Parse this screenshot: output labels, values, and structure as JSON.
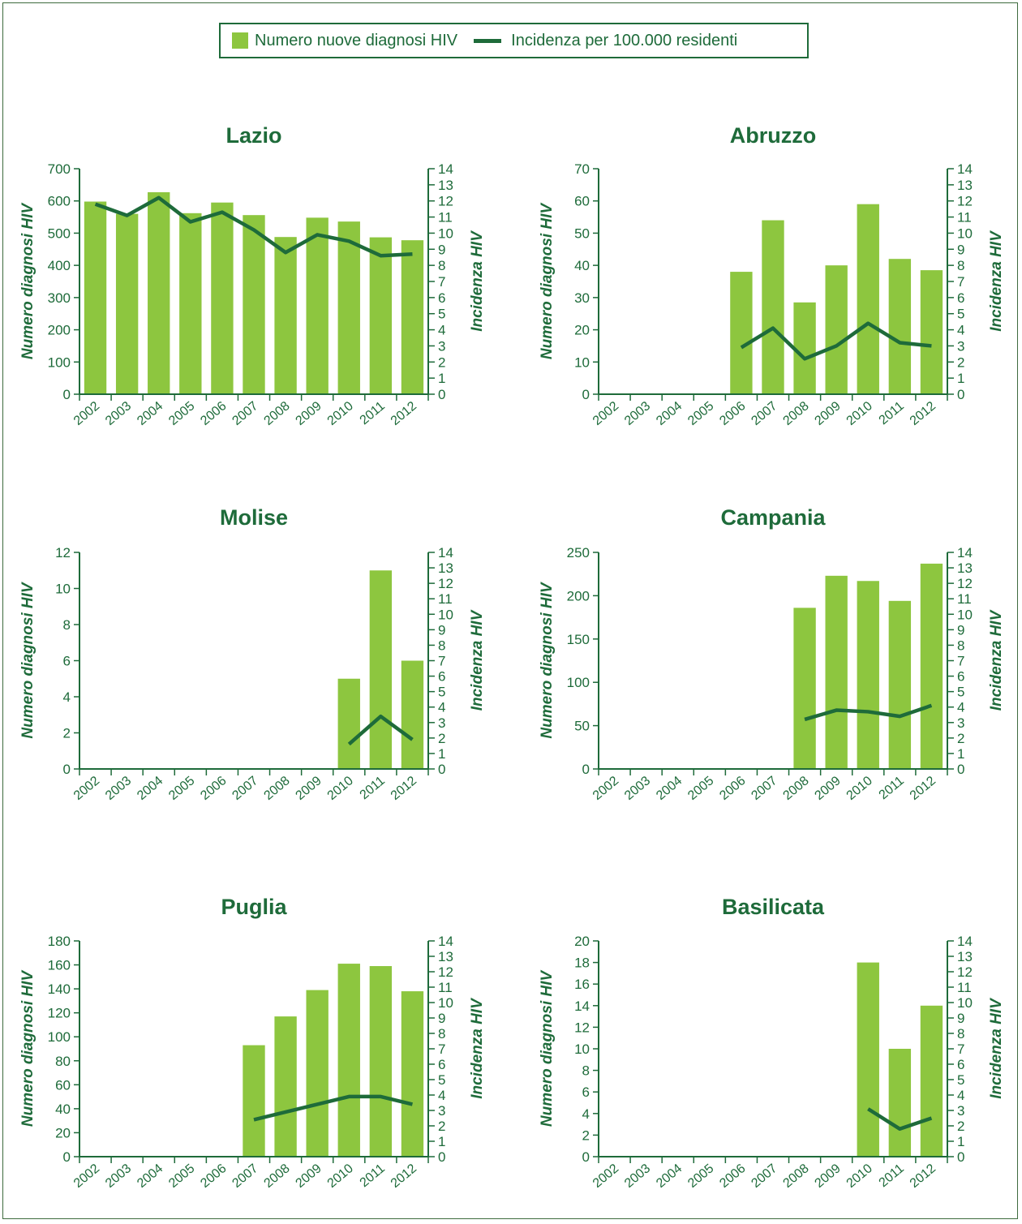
{
  "legend": {
    "bar_label": "Numero nuove diagnosi HIV",
    "line_label": "Incidenza per 100.000 residenti"
  },
  "colors": {
    "bar": "#8dc63f",
    "line": "#1e6b3a",
    "axis": "#1e6b3a",
    "text": "#1e6b3a",
    "title": "#1e6b3a"
  },
  "chart_data": [
    {
      "type": "bar",
      "title": "Lazio",
      "categories": [
        "2002",
        "2003",
        "2004",
        "2005",
        "2006",
        "2007",
        "2008",
        "2009",
        "2010",
        "2011",
        "2012"
      ],
      "ylabel": "Numero diagnosi HIV",
      "y2label": "Incidenza HIV",
      "ylim": [
        0,
        700
      ],
      "yticks": [
        0,
        100,
        200,
        300,
        400,
        500,
        600,
        700
      ],
      "y2lim": [
        0,
        14
      ],
      "series": [
        {
          "name": "Numero nuove diagnosi HIV",
          "type": "bar",
          "values": [
            598,
            560,
            627,
            562,
            595,
            556,
            488,
            548,
            536,
            487,
            478
          ]
        },
        {
          "name": "Incidenza per 100.000 residenti",
          "type": "line",
          "axis": "right",
          "values": [
            11.8,
            11.1,
            12.2,
            10.7,
            11.3,
            10.2,
            8.8,
            9.9,
            9.5,
            8.6,
            8.7
          ]
        }
      ]
    },
    {
      "type": "bar",
      "title": "Abruzzo",
      "categories": [
        "2002",
        "2003",
        "2004",
        "2005",
        "2006",
        "2007",
        "2008",
        "2009",
        "2010",
        "2011",
        "2012"
      ],
      "ylabel": "Numero diagnosi HIV",
      "y2label": "Incidenza HIV",
      "ylim": [
        0,
        70
      ],
      "yticks": [
        0,
        10,
        20,
        30,
        40,
        50,
        60,
        70
      ],
      "y2lim": [
        0,
        14
      ],
      "series": [
        {
          "name": "Numero nuove diagnosi HIV",
          "type": "bar",
          "values": [
            null,
            null,
            null,
            null,
            38,
            54,
            28.5,
            40,
            59,
            42,
            38.5
          ]
        },
        {
          "name": "Incidenza per 100.000 residenti",
          "type": "line",
          "axis": "right",
          "values": [
            null,
            null,
            null,
            null,
            2.9,
            4.1,
            2.2,
            3.0,
            4.4,
            3.2,
            3.0
          ]
        }
      ]
    },
    {
      "type": "bar",
      "title": "Molise",
      "categories": [
        "2002",
        "2003",
        "2004",
        "2005",
        "2006",
        "2007",
        "2008",
        "2009",
        "2010",
        "2011",
        "2012"
      ],
      "ylabel": "Numero diagnosi HIV",
      "y2label": "Incidenza HIV",
      "ylim": [
        0,
        12
      ],
      "yticks": [
        0,
        2,
        4,
        6,
        8,
        10,
        12
      ],
      "y2lim": [
        0,
        14
      ],
      "series": [
        {
          "name": "Numero nuove diagnosi HIV",
          "type": "bar",
          "values": [
            null,
            null,
            null,
            null,
            null,
            null,
            null,
            null,
            5,
            11,
            6
          ]
        },
        {
          "name": "Incidenza per 100.000 residenti",
          "type": "line",
          "axis": "right",
          "values": [
            null,
            null,
            null,
            null,
            null,
            null,
            null,
            null,
            1.6,
            3.4,
            1.9
          ]
        }
      ]
    },
    {
      "type": "bar",
      "title": "Campania",
      "categories": [
        "2002",
        "2003",
        "2004",
        "2005",
        "2006",
        "2007",
        "2008",
        "2009",
        "2010",
        "2011",
        "2012"
      ],
      "ylabel": "Numero diagnosi HIV",
      "y2label": "Incidenza HIV",
      "ylim": [
        0,
        250
      ],
      "yticks": [
        0,
        50,
        100,
        150,
        200,
        250
      ],
      "y2lim": [
        0,
        14
      ],
      "series": [
        {
          "name": "Numero nuove diagnosi HIV",
          "type": "bar",
          "values": [
            null,
            null,
            null,
            null,
            null,
            null,
            186,
            223,
            217,
            194,
            237
          ]
        },
        {
          "name": "Incidenza per 100.000 residenti",
          "type": "line",
          "axis": "right",
          "values": [
            null,
            null,
            null,
            null,
            null,
            null,
            3.2,
            3.8,
            3.7,
            3.4,
            4.1
          ]
        }
      ]
    },
    {
      "type": "bar",
      "title": "Puglia",
      "categories": [
        "2002",
        "2003",
        "2004",
        "2005",
        "2006",
        "2007",
        "2008",
        "2009",
        "2010",
        "2011",
        "2012"
      ],
      "ylabel": "Numero diagnosi HIV",
      "y2label": "Incidenza HIV",
      "ylim": [
        0,
        180
      ],
      "yticks": [
        0,
        20,
        40,
        60,
        80,
        100,
        120,
        140,
        160,
        180
      ],
      "y2lim": [
        0,
        14
      ],
      "series": [
        {
          "name": "Numero nuove diagnosi HIV",
          "type": "bar",
          "values": [
            null,
            null,
            null,
            null,
            null,
            93,
            117,
            139,
            161,
            159,
            138
          ]
        },
        {
          "name": "Incidenza per 100.000 residenti",
          "type": "line",
          "axis": "right",
          "values": [
            null,
            null,
            null,
            null,
            null,
            2.4,
            2.9,
            3.4,
            3.9,
            3.9,
            3.4
          ]
        }
      ]
    },
    {
      "type": "bar",
      "title": "Basilicata",
      "categories": [
        "2002",
        "2003",
        "2004",
        "2005",
        "2006",
        "2007",
        "2008",
        "2009",
        "2010",
        "2011",
        "2012"
      ],
      "ylabel": "Numero diagnosi HIV",
      "y2label": "Incidenza HIV",
      "ylim": [
        0,
        20
      ],
      "yticks": [
        0,
        2,
        4,
        6,
        8,
        10,
        12,
        14,
        16,
        18,
        20
      ],
      "y2lim": [
        0,
        14
      ],
      "series": [
        {
          "name": "Numero nuove diagnosi HIV",
          "type": "bar",
          "values": [
            null,
            null,
            null,
            null,
            null,
            null,
            null,
            null,
            18,
            10,
            14
          ]
        },
        {
          "name": "Incidenza per 100.000 residenti",
          "type": "line",
          "axis": "right",
          "values": [
            null,
            null,
            null,
            null,
            null,
            null,
            null,
            null,
            3.1,
            1.8,
            2.5
          ]
        }
      ]
    }
  ]
}
